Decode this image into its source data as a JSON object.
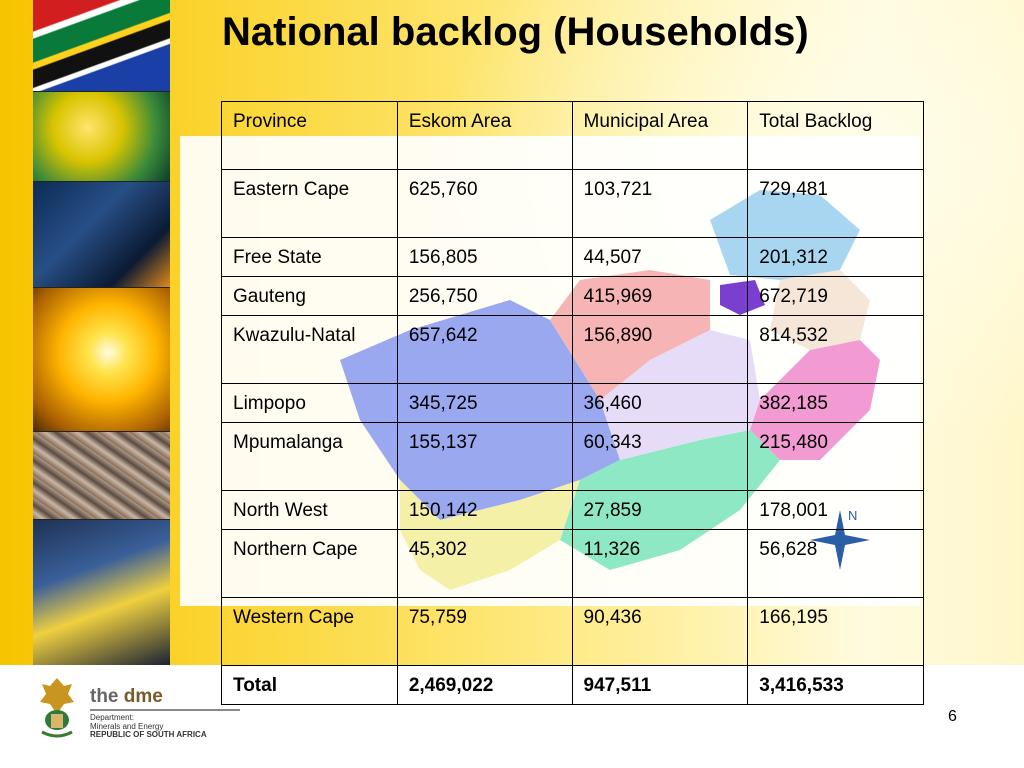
{
  "slide": {
    "title": "National backlog (Households)",
    "page_number": "6"
  },
  "table": {
    "headers": [
      "Province",
      "Eskom Area",
      "Municipal Area",
      "Total Backlog"
    ],
    "rows": [
      [
        "Eastern Cape",
        "625,760",
        "103,721",
        "729,481"
      ],
      [
        "Free State",
        "156,805",
        "44,507",
        "201,312"
      ],
      [
        "Gauteng",
        "256,750",
        "415,969",
        "672,719"
      ],
      [
        "Kwazulu-Natal",
        "657,642",
        "156,890",
        "814,532"
      ],
      [
        "Limpopo",
        "345,725",
        "36,460",
        "382,185"
      ],
      [
        "Mpumalanga",
        "155,137",
        "60,343",
        "215,480"
      ],
      [
        "North West",
        "150,142",
        "27,859",
        "178,001"
      ],
      [
        "Northern Cape",
        "45,302",
        "11,326",
        "56,628"
      ],
      [
        "Western Cape",
        "75,759",
        "90,436",
        "166,195"
      ]
    ],
    "total": [
      "Total",
      "2,469,022",
      "947,511",
      "3,416,533"
    ]
  },
  "map": {
    "compass_label": "N"
  },
  "logo": {
    "wordmark_prefix": "the ",
    "wordmark_name": "dme",
    "line1": "Department:",
    "line2": "Minerals and Energy",
    "line3": "REPUBLIC OF SOUTH AFRICA"
  },
  "colors": {
    "background_yellow": "#f6c400",
    "map_blue": "#9aa8f0",
    "map_green": "#8ee8c4",
    "map_pink": "#f29ad2",
    "map_lightblue": "#a8d6f0"
  }
}
